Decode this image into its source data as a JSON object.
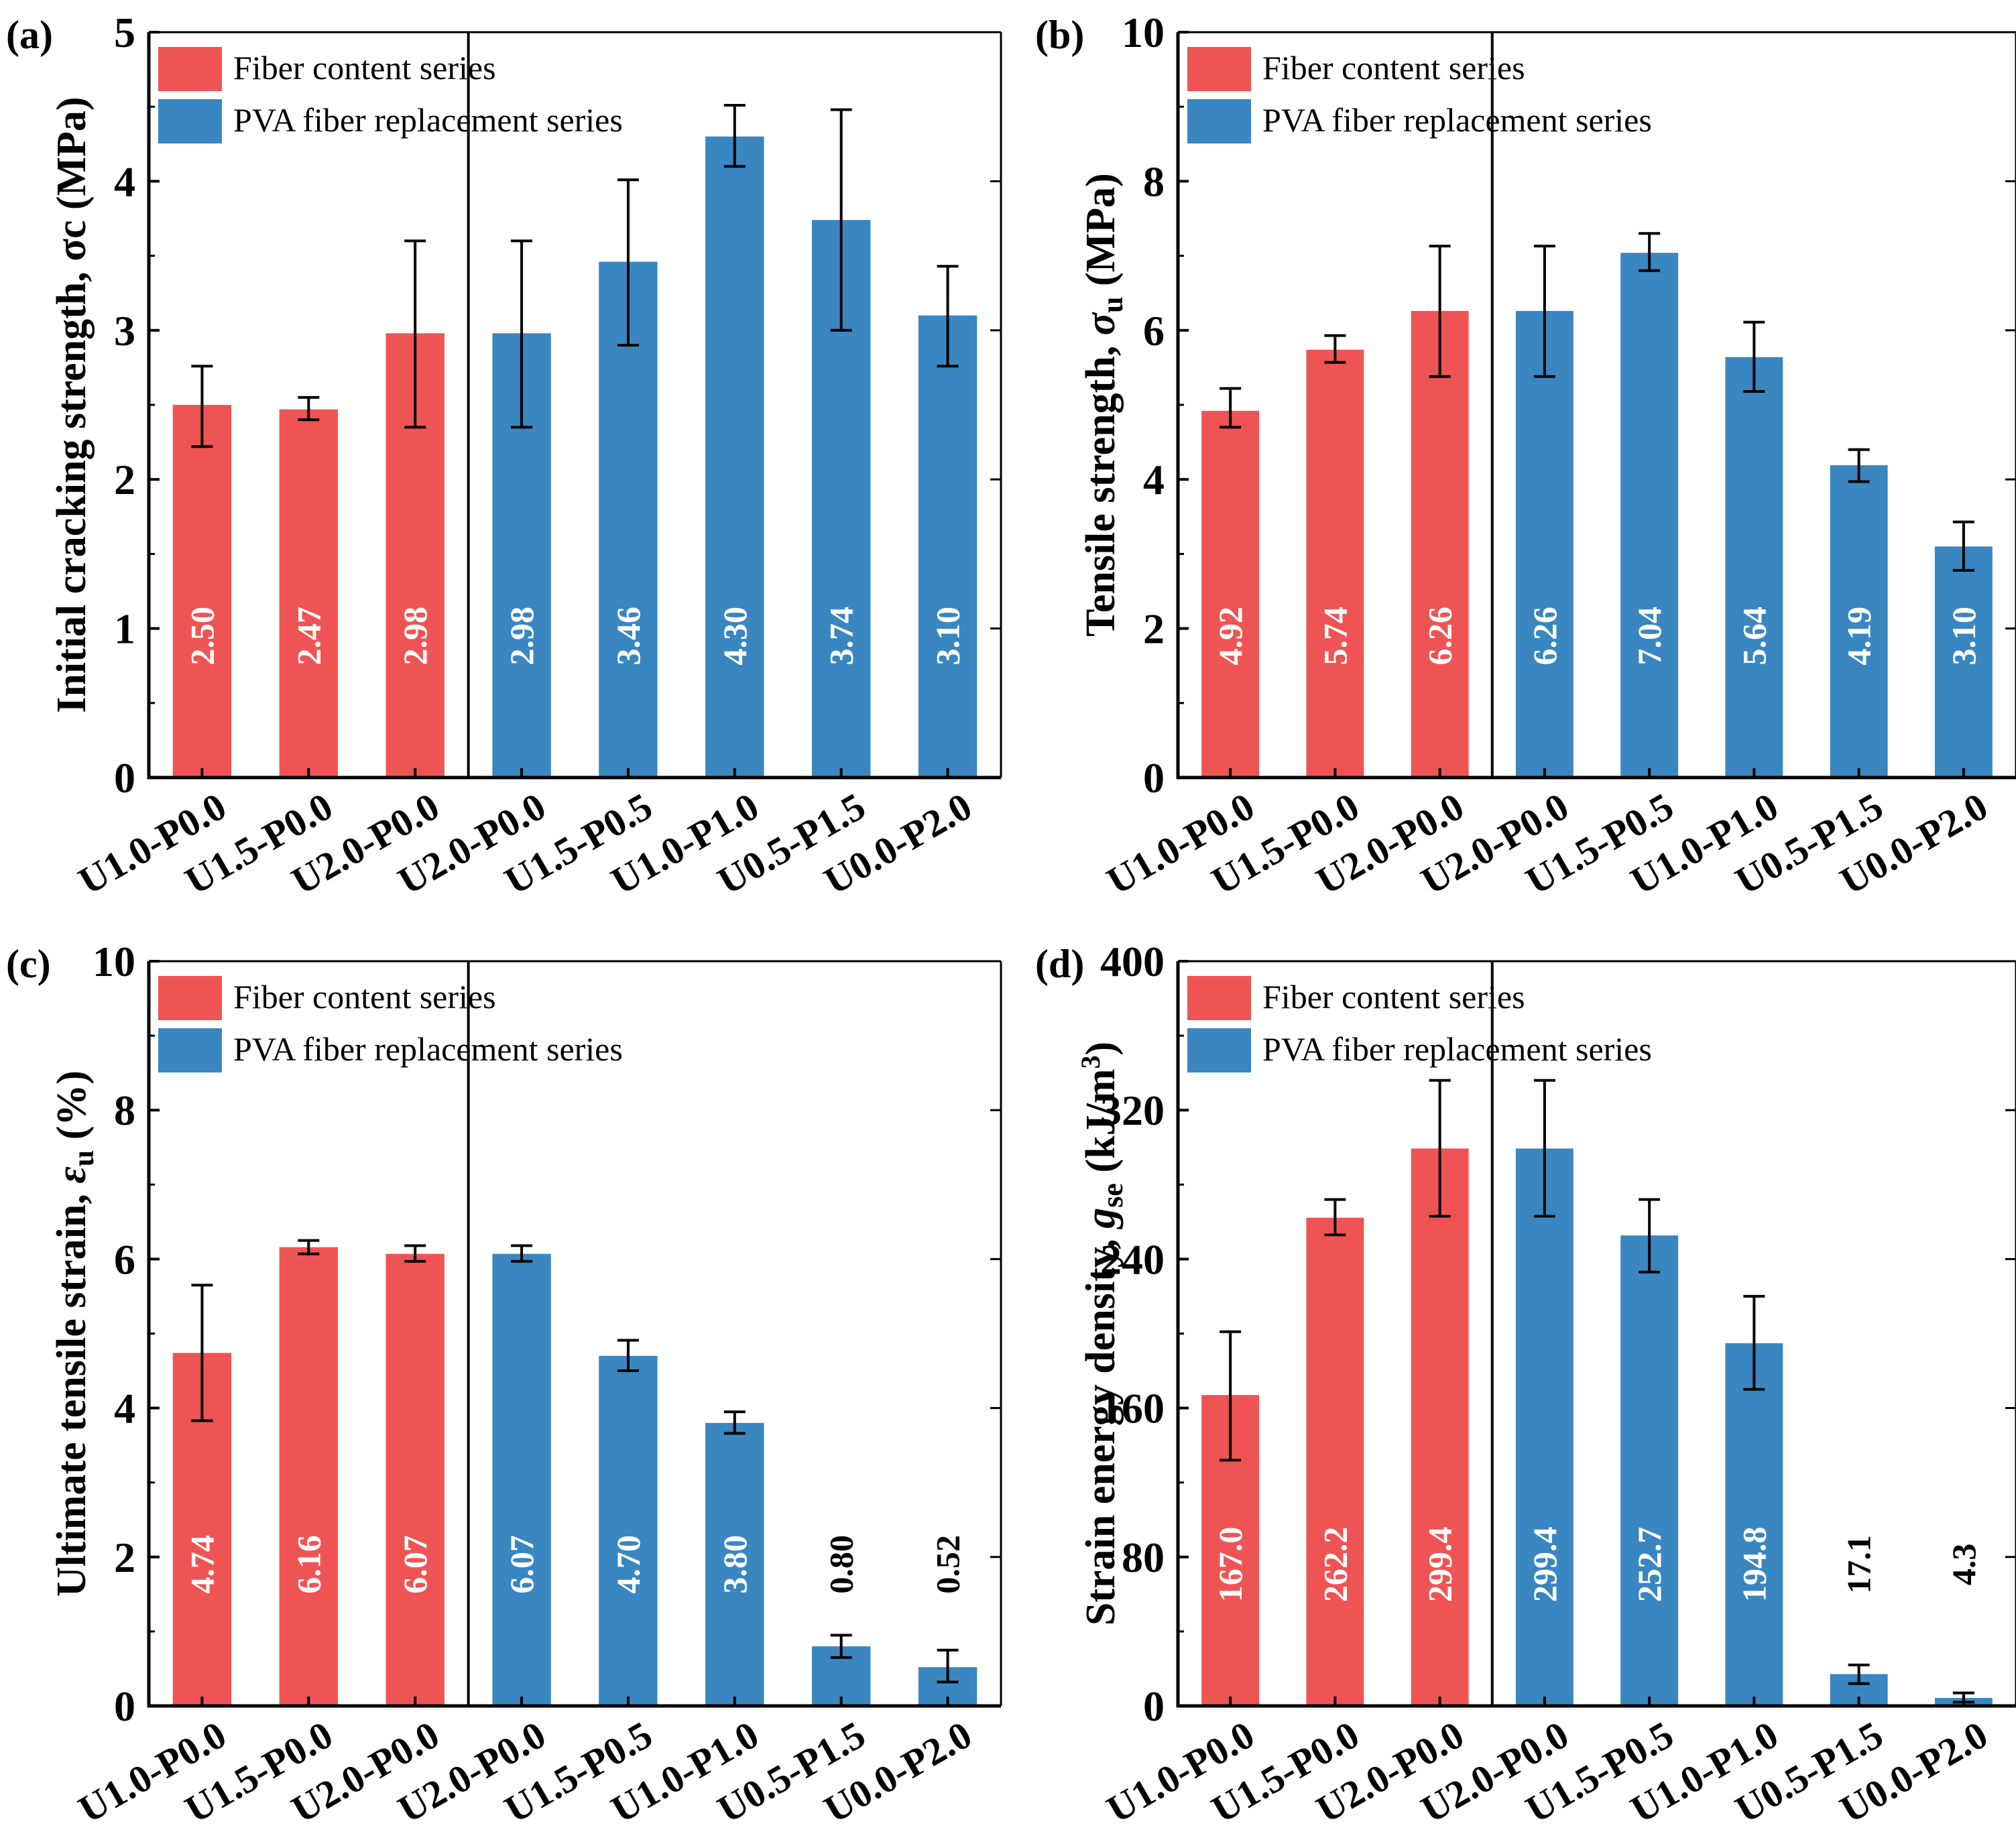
{
  "colors": {
    "fiber": "#ef5454",
    "pva": "#3a86c0",
    "axis": "#000000",
    "value_inside": "#ffffff"
  },
  "legend": {
    "fiber": "Fiber content series",
    "pva": "PVA fiber replacement series"
  },
  "categories": [
    "U1.0-P0.0",
    "U1.5-P0.0",
    "U2.0-P0.0",
    "U2.0-P0.0",
    "U1.5-P0.5",
    "U1.0-P1.0",
    "U0.5-P1.5",
    "U0.0-P2.0"
  ],
  "chart_data": [
    {
      "type": "bar",
      "panel": "(a)",
      "ylabel_plain": "Initial cracking strength, σc (MPa)",
      "ylim": [
        0,
        5
      ],
      "yticks": [
        0,
        1,
        2,
        3,
        4,
        5
      ],
      "series_of": [
        "fiber",
        "fiber",
        "fiber",
        "pva",
        "pva",
        "pva",
        "pva",
        "pva"
      ],
      "values": [
        2.5,
        2.47,
        2.98,
        2.98,
        3.46,
        4.3,
        3.74,
        3.1
      ],
      "labels": [
        "2.50",
        "2.47",
        "2.98",
        "2.98",
        "3.46",
        "4.30",
        "3.74",
        "3.10"
      ],
      "label_outside": [
        false,
        false,
        false,
        false,
        false,
        false,
        false,
        false
      ],
      "err_low": [
        2.22,
        2.4,
        2.35,
        2.35,
        2.9,
        4.1,
        3.0,
        2.76
      ],
      "err_high": [
        2.76,
        2.55,
        3.6,
        3.6,
        4.01,
        4.51,
        4.48,
        3.43
      ]
    },
    {
      "type": "bar",
      "panel": "(b)",
      "ylabel_main": "Tensile strength, ",
      "ylabel_var": "σ",
      "ylabel_sub": "u",
      "ylabel_tail": " (MPa)",
      "ylim": [
        0,
        10
      ],
      "yticks": [
        0,
        2,
        4,
        6,
        8,
        10
      ],
      "series_of": [
        "fiber",
        "fiber",
        "fiber",
        "pva",
        "pva",
        "pva",
        "pva",
        "pva"
      ],
      "values": [
        4.92,
        5.74,
        6.26,
        6.26,
        7.04,
        5.64,
        4.19,
        3.1
      ],
      "labels": [
        "4.92",
        "5.74",
        "6.26",
        "6.26",
        "7.04",
        "5.64",
        "4.19",
        "3.10"
      ],
      "label_outside": [
        false,
        false,
        false,
        false,
        false,
        false,
        false,
        false
      ],
      "err_low": [
        4.7,
        5.57,
        5.38,
        5.38,
        6.8,
        5.18,
        3.97,
        2.78
      ],
      "err_high": [
        5.22,
        5.93,
        7.13,
        7.13,
        7.3,
        6.11,
        4.4,
        3.43
      ]
    },
    {
      "type": "bar",
      "panel": "(c)",
      "ylabel_main": "Ultimate tensile strain, ",
      "ylabel_var": "ε",
      "ylabel_sub": "u",
      "ylabel_tail": " (%)",
      "ylim": [
        0,
        10
      ],
      "yticks": [
        0,
        2,
        4,
        6,
        8,
        10
      ],
      "series_of": [
        "fiber",
        "fiber",
        "fiber",
        "pva",
        "pva",
        "pva",
        "pva",
        "pva"
      ],
      "values": [
        4.74,
        6.16,
        6.07,
        6.07,
        4.7,
        3.8,
        0.8,
        0.52
      ],
      "labels": [
        "4.74",
        "6.16",
        "6.07",
        "6.07",
        "4.70",
        "3.80",
        "0.80",
        "0.52"
      ],
      "label_outside": [
        false,
        false,
        false,
        false,
        false,
        false,
        true,
        true
      ],
      "err_low": [
        3.83,
        6.07,
        5.97,
        5.97,
        4.5,
        3.66,
        0.65,
        0.32
      ],
      "err_high": [
        5.65,
        6.25,
        6.18,
        6.18,
        4.91,
        3.95,
        0.95,
        0.75
      ]
    },
    {
      "type": "bar",
      "panel": "(d)",
      "ylabel_main": "Strain energy density, ",
      "ylabel_var": "g",
      "ylabel_sub": "se",
      "ylabel_tail": " (kJ/m",
      "ylabel_sup": "3",
      "ylabel_close": ")",
      "ylim": [
        0,
        400
      ],
      "yticks": [
        0,
        80,
        160,
        240,
        320,
        400
      ],
      "series_of": [
        "fiber",
        "fiber",
        "fiber",
        "pva",
        "pva",
        "pva",
        "pva",
        "pva"
      ],
      "values": [
        167.0,
        262.2,
        299.4,
        299.4,
        252.7,
        194.8,
        17.1,
        4.3
      ],
      "labels": [
        "167.0",
        "262.2",
        "299.4",
        "299.4",
        "252.7",
        "194.8",
        "17.1",
        "4.3"
      ],
      "label_outside": [
        false,
        false,
        false,
        false,
        false,
        false,
        true,
        true
      ],
      "err_low": [
        132,
        253,
        263,
        263,
        233,
        170,
        12,
        2
      ],
      "err_high": [
        201,
        272,
        336,
        336,
        272,
        220,
        22,
        7
      ]
    }
  ]
}
